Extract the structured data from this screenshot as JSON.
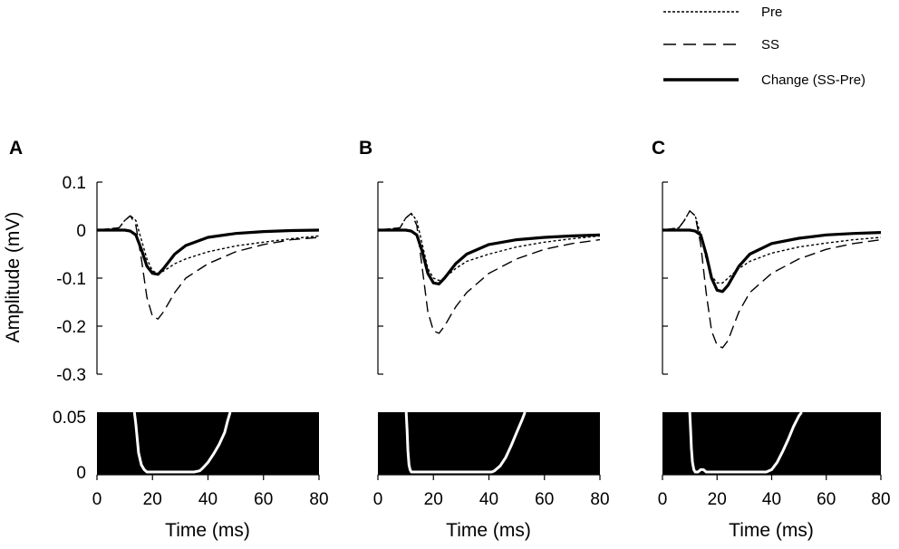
{
  "legend": [
    {
      "label": "Pre",
      "style": "dotted"
    },
    {
      "label": "SS",
      "style": "dashed"
    },
    {
      "label": "Change (SS-Pre)",
      "style": "solid"
    }
  ],
  "y_axis_title": "Amplitude (mV)",
  "x_axis_title": "Time (ms)",
  "chart_data": [
    {
      "panel": "A",
      "type": "line",
      "xlim": [
        0,
        80
      ],
      "ylim": [
        -0.3,
        0.1
      ],
      "yticks": [
        "0.1",
        "0",
        "-0.1",
        "-0.2",
        "-0.3"
      ],
      "ylabel": "Amplitude (mV)",
      "series": [
        {
          "name": "Pre",
          "style": "dotted",
          "x": [
            0,
            8,
            10,
            12,
            14,
            16,
            18,
            20,
            22,
            24,
            26,
            28,
            32,
            40,
            50,
            60,
            70,
            80
          ],
          "y": [
            0,
            0.005,
            0.02,
            0.03,
            0.02,
            -0.02,
            -0.06,
            -0.085,
            -0.09,
            -0.085,
            -0.078,
            -0.07,
            -0.06,
            -0.045,
            -0.033,
            -0.025,
            -0.018,
            -0.012
          ]
        },
        {
          "name": "SS",
          "style": "dashed",
          "x": [
            0,
            8,
            10,
            12,
            14,
            16,
            18,
            20,
            22,
            24,
            26,
            28,
            32,
            40,
            50,
            60,
            70,
            80
          ],
          "y": [
            0,
            0.005,
            0.02,
            0.03,
            0.01,
            -0.06,
            -0.14,
            -0.18,
            -0.185,
            -0.17,
            -0.15,
            -0.13,
            -0.1,
            -0.07,
            -0.045,
            -0.03,
            -0.02,
            -0.015
          ]
        },
        {
          "name": "Change (SS-Pre)",
          "style": "solid",
          "x": [
            0,
            10,
            12,
            14,
            16,
            18,
            20,
            22,
            24,
            26,
            28,
            32,
            40,
            50,
            60,
            70,
            80
          ],
          "y": [
            0,
            0,
            -0.002,
            -0.01,
            -0.04,
            -0.075,
            -0.09,
            -0.092,
            -0.08,
            -0.065,
            -0.05,
            -0.032,
            -0.015,
            -0.007,
            -0.003,
            -0.001,
            0
          ]
        }
      ]
    },
    {
      "panel": "B",
      "type": "line",
      "xlim": [
        0,
        80
      ],
      "ylim": [
        -0.3,
        0.1
      ],
      "series": [
        {
          "name": "Pre",
          "style": "dotted",
          "x": [
            0,
            8,
            10,
            12,
            14,
            16,
            18,
            20,
            22,
            24,
            26,
            28,
            32,
            40,
            50,
            60,
            70,
            80
          ],
          "y": [
            0,
            0.005,
            0.025,
            0.035,
            0.02,
            -0.03,
            -0.08,
            -0.1,
            -0.105,
            -0.1,
            -0.09,
            -0.08,
            -0.065,
            -0.05,
            -0.035,
            -0.025,
            -0.018,
            -0.012
          ]
        },
        {
          "name": "SS",
          "style": "dashed",
          "x": [
            0,
            8,
            10,
            12,
            14,
            16,
            18,
            20,
            22,
            24,
            26,
            28,
            32,
            40,
            50,
            60,
            70,
            80
          ],
          "y": [
            0,
            0.005,
            0.025,
            0.035,
            0.01,
            -0.08,
            -0.17,
            -0.21,
            -0.215,
            -0.2,
            -0.18,
            -0.16,
            -0.13,
            -0.09,
            -0.06,
            -0.04,
            -0.028,
            -0.02
          ]
        },
        {
          "name": "Change (SS-Pre)",
          "style": "solid",
          "x": [
            0,
            10,
            12,
            14,
            16,
            18,
            20,
            22,
            24,
            26,
            28,
            32,
            40,
            50,
            60,
            70,
            80
          ],
          "y": [
            0,
            0,
            -0.002,
            -0.01,
            -0.045,
            -0.09,
            -0.11,
            -0.112,
            -0.1,
            -0.085,
            -0.07,
            -0.05,
            -0.03,
            -0.02,
            -0.015,
            -0.012,
            -0.01
          ]
        }
      ]
    },
    {
      "panel": "C",
      "type": "line",
      "xlim": [
        0,
        80
      ],
      "ylim": [
        -0.3,
        0.1
      ],
      "series": [
        {
          "name": "Pre",
          "style": "dotted",
          "x": [
            0,
            6,
            8,
            10,
            12,
            14,
            16,
            18,
            20,
            22,
            24,
            26,
            28,
            32,
            40,
            50,
            60,
            70,
            80
          ],
          "y": [
            0,
            0.005,
            0.02,
            0.04,
            0.03,
            -0.01,
            -0.06,
            -0.095,
            -0.11,
            -0.11,
            -0.1,
            -0.09,
            -0.08,
            -0.065,
            -0.048,
            -0.035,
            -0.027,
            -0.02,
            -0.015
          ]
        },
        {
          "name": "SS",
          "style": "dashed",
          "x": [
            0,
            6,
            8,
            10,
            12,
            14,
            16,
            18,
            20,
            22,
            24,
            26,
            28,
            32,
            40,
            50,
            60,
            70,
            80
          ],
          "y": [
            0,
            0.005,
            0.02,
            0.04,
            0.03,
            -0.03,
            -0.13,
            -0.21,
            -0.24,
            -0.245,
            -0.23,
            -0.2,
            -0.17,
            -0.13,
            -0.09,
            -0.06,
            -0.04,
            -0.028,
            -0.02
          ]
        },
        {
          "name": "Change (SS-Pre)",
          "style": "solid",
          "x": [
            0,
            10,
            12,
            14,
            16,
            18,
            20,
            22,
            24,
            26,
            28,
            32,
            40,
            50,
            60,
            70,
            80
          ],
          "y": [
            0,
            0,
            -0.002,
            -0.01,
            -0.05,
            -0.1,
            -0.125,
            -0.128,
            -0.115,
            -0.095,
            -0.075,
            -0.05,
            -0.028,
            -0.017,
            -0.01,
            -0.007,
            -0.005
          ]
        }
      ]
    },
    {
      "panel": "A-lower",
      "type": "line",
      "xlim": [
        0,
        80
      ],
      "ylim": [
        0,
        0.05
      ],
      "yticks": [
        "0.05",
        "0"
      ],
      "xticks": [
        "0",
        "20",
        "40",
        "60",
        "80"
      ],
      "xlabel": "Time (ms)",
      "series": [
        {
          "x": [
            13.5,
            14,
            14.5,
            15,
            16,
            17,
            18,
            20,
            25,
            30,
            35,
            37,
            38,
            40,
            42,
            44,
            46,
            47,
            48
          ],
          "y": [
            0.05,
            0.04,
            0.028,
            0.016,
            0.006,
            0.002,
            0,
            0,
            0,
            0,
            0,
            0.001,
            0.003,
            0.008,
            0.015,
            0.023,
            0.033,
            0.042,
            0.05
          ]
        }
      ]
    },
    {
      "panel": "B-lower",
      "type": "line",
      "xlim": [
        0,
        80
      ],
      "ylim": [
        0,
        0.05
      ],
      "xticks": [
        "0",
        "20",
        "40",
        "60",
        "80"
      ],
      "xlabel": "Time (ms)",
      "series": [
        {
          "x": [
            10.2,
            10.5,
            10.8,
            11.2,
            11.6,
            12,
            14,
            20,
            30,
            40,
            41,
            42,
            44,
            46,
            48,
            50,
            52,
            53
          ],
          "y": [
            0.05,
            0.035,
            0.018,
            0.006,
            0.002,
            0,
            0,
            0,
            0,
            0,
            0,
            0.001,
            0.005,
            0.012,
            0.022,
            0.033,
            0.044,
            0.05
          ]
        }
      ]
    },
    {
      "panel": "C-lower",
      "type": "line",
      "xlim": [
        0,
        80
      ],
      "ylim": [
        0,
        0.05
      ],
      "xticks": [
        "0",
        "20",
        "40",
        "60",
        "80"
      ],
      "xlabel": "Time (ms)",
      "series": [
        {
          "x": [
            10,
            10.3,
            10.6,
            11,
            11.5,
            12,
            13,
            14,
            15,
            16,
            18,
            20,
            30,
            38,
            40,
            42,
            44,
            46,
            48,
            50,
            51
          ],
          "y": [
            0.05,
            0.036,
            0.02,
            0.008,
            0.002,
            0,
            0,
            0.002,
            0.002,
            0,
            0,
            0,
            0,
            0,
            0.002,
            0.008,
            0.017,
            0.027,
            0.038,
            0.047,
            0.05
          ]
        }
      ]
    }
  ]
}
